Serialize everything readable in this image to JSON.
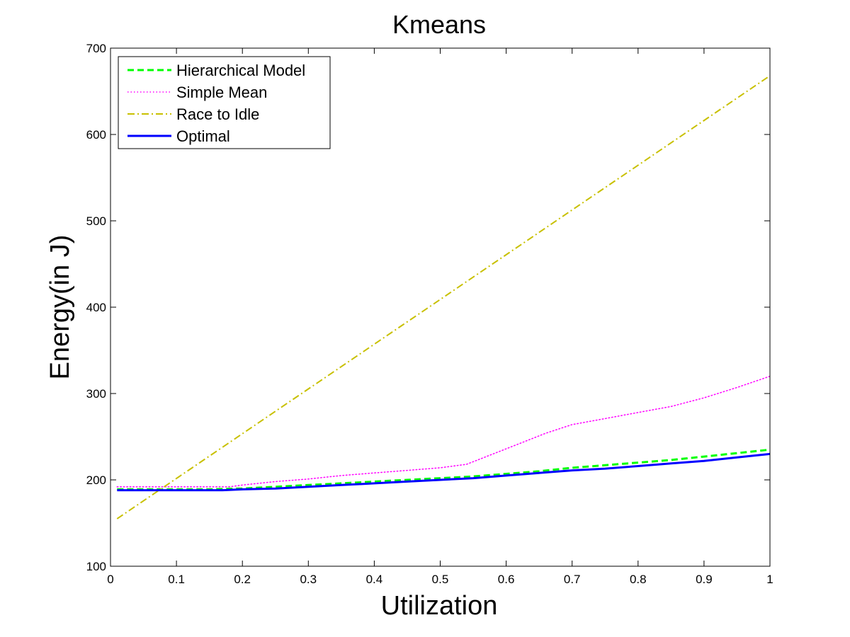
{
  "chart_data": {
    "type": "line",
    "title": "Kmeans",
    "xlabel": "Utilization",
    "ylabel": "Energy(in J)",
    "xlim": [
      0,
      1
    ],
    "ylim": [
      100,
      700
    ],
    "xticks": [
      0,
      0.1,
      0.2,
      0.3,
      0.4,
      0.5,
      0.6,
      0.7,
      0.8,
      0.9,
      1
    ],
    "xtick_labels": [
      "0",
      "0.1",
      "0.2",
      "0.3",
      "0.4",
      "0.5",
      "0.6",
      "0.7",
      "0.8",
      "0.9",
      "1"
    ],
    "yticks": [
      100,
      200,
      300,
      400,
      500,
      600,
      700
    ],
    "ytick_labels": [
      "100",
      "200",
      "300",
      "400",
      "500",
      "600",
      "700"
    ],
    "grid": false,
    "legend_position": "top-left",
    "series": [
      {
        "name": "Hierarchical Model",
        "color": "#00ff00",
        "style": "dashed",
        "x": [
          0.01,
          0.05,
          0.1,
          0.15,
          0.2,
          0.25,
          0.3,
          0.35,
          0.4,
          0.45,
          0.5,
          0.55,
          0.6,
          0.65,
          0.7,
          0.75,
          0.8,
          0.85,
          0.9,
          0.95,
          1.0
        ],
        "y": [
          189,
          189,
          189,
          189,
          190,
          192,
          194,
          196,
          198,
          200,
          202,
          204,
          207,
          210,
          214,
          217,
          220,
          223,
          227,
          231,
          235
        ]
      },
      {
        "name": "Simple Mean",
        "color": "#ff00ff",
        "style": "dotted",
        "x": [
          0.01,
          0.05,
          0.1,
          0.15,
          0.18,
          0.2,
          0.25,
          0.3,
          0.35,
          0.4,
          0.45,
          0.5,
          0.54,
          0.58,
          0.62,
          0.66,
          0.7,
          0.75,
          0.8,
          0.85,
          0.9,
          0.95,
          1.0
        ],
        "y": [
          192,
          192,
          192,
          192,
          192,
          194,
          198,
          201,
          205,
          208,
          211,
          214,
          218,
          230,
          242,
          254,
          264,
          271,
          278,
          285,
          295,
          307,
          320
        ]
      },
      {
        "name": "Race to Idle",
        "color": "#c8c000",
        "style": "dashdot",
        "x": [
          0.01,
          1.0
        ],
        "y": [
          155,
          668
        ]
      },
      {
        "name": "Optimal",
        "color": "#0000ff",
        "style": "solid",
        "x": [
          0.01,
          0.05,
          0.1,
          0.15,
          0.17,
          0.2,
          0.25,
          0.3,
          0.35,
          0.4,
          0.45,
          0.5,
          0.55,
          0.6,
          0.65,
          0.7,
          0.75,
          0.8,
          0.85,
          0.9,
          0.95,
          1.0
        ],
        "y": [
          188,
          188,
          188,
          188,
          188,
          189,
          190,
          192,
          194,
          196,
          198,
          200,
          202,
          205,
          208,
          211,
          213,
          216,
          219,
          222,
          226,
          230
        ]
      }
    ]
  }
}
